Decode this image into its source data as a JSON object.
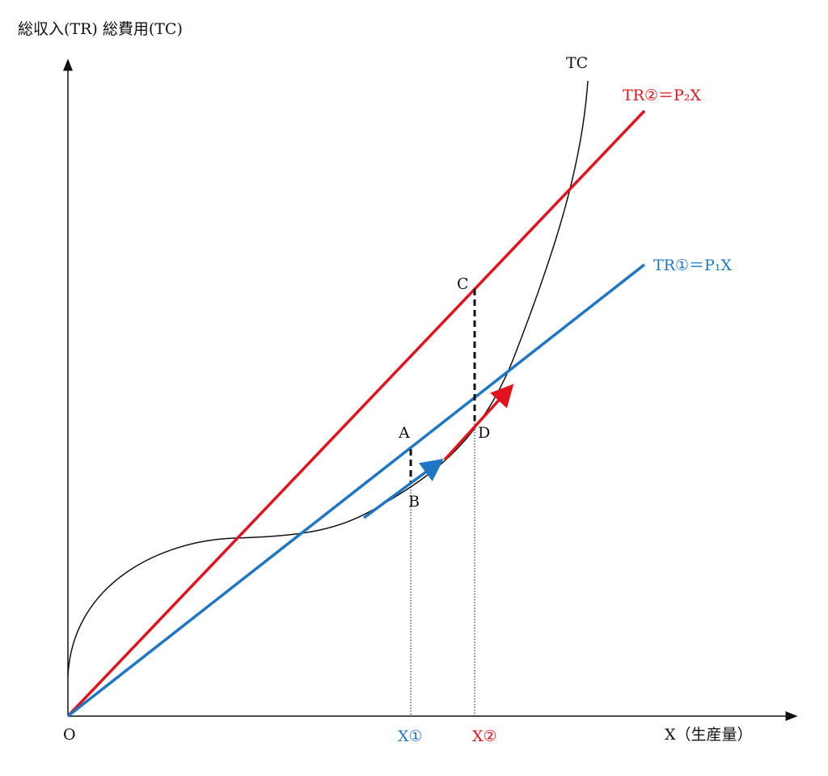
{
  "axes": {
    "y_label": "総収入(TR)  総費用(TC)",
    "x_label": "X（生産量）",
    "origin": "O"
  },
  "curves": {
    "tc": "TC",
    "tr2": "TR②＝P₂X",
    "tr1": "TR①＝P₁X"
  },
  "points": {
    "a": "A",
    "b": "B",
    "c": "C",
    "d": "D"
  },
  "x_marks": {
    "x1": "X①",
    "x2": "X②"
  }
}
